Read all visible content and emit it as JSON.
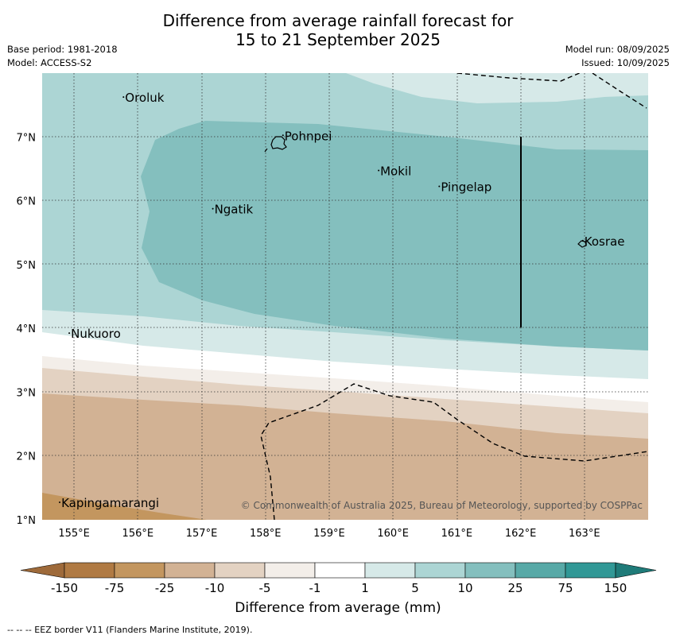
{
  "header": {
    "title_line1": "Difference from average rainfall forecast for",
    "title_line2": "15 to 21 September 2025",
    "base_period": "Base period: 1981-2018",
    "model": "Model: ACCESS-S2",
    "model_run": "Model run: 08/09/2025",
    "issued": "Issued: 10/09/2025"
  },
  "map": {
    "lon_ticks": [
      "155°E",
      "156°E",
      "157°E",
      "158°E",
      "159°E",
      "160°E",
      "161°E",
      "162°E",
      "163°E"
    ],
    "lat_ticks": [
      "7°N",
      "6°N",
      "5°N",
      "4°N",
      "3°N",
      "2°N",
      "1°N"
    ],
    "places": [
      {
        "name": "Oroluk",
        "lon": 155.8,
        "lat": 7.55
      },
      {
        "name": "Pohnpei",
        "lon": 158.3,
        "lat": 6.95
      },
      {
        "name": "Mokil",
        "lon": 159.8,
        "lat": 6.4
      },
      {
        "name": "Pingelap",
        "lon": 160.75,
        "lat": 6.15
      },
      {
        "name": "Ngatik",
        "lon": 157.2,
        "lat": 5.8
      },
      {
        "name": "Kosrae",
        "lon": 163.0,
        "lat": 5.3
      },
      {
        "name": "Nukuoro",
        "lon": 154.95,
        "lat": 3.85
      },
      {
        "name": "Kapingamarangi",
        "lon": 154.8,
        "lat": 1.2
      }
    ],
    "copyright": "© Commonwealth of Australia 2025, Bureau of Meteorology, supported by COSPPac"
  },
  "colorbar": {
    "labels": [
      "-150",
      "-75",
      "-25",
      "-10",
      "-5",
      "-1",
      "1",
      "5",
      "10",
      "25",
      "75",
      "150"
    ],
    "colors": [
      "#9e6a3a",
      "#b07a43",
      "#c3965f",
      "#d2b294",
      "#e3d2c2",
      "#f3eee9",
      "#ffffff",
      "#d6e9e8",
      "#acd5d4",
      "#84bfbe",
      "#58a9a7",
      "#319896",
      "#1f7b79"
    ],
    "label": "Difference from average (mm)"
  },
  "footer": "--  --  -- EEZ border V11 (Flanders Marine Institute, 2019)."
}
